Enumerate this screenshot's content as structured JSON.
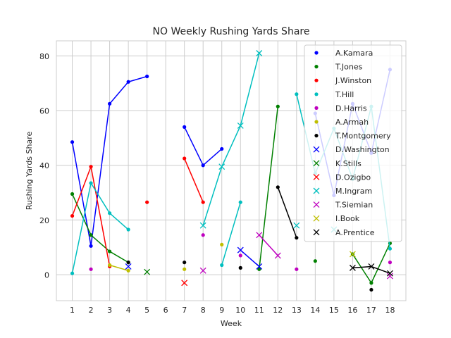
{
  "chart_data": {
    "type": "line",
    "title": "NO Weekly Rushing Yards Share",
    "xlabel": "Week",
    "ylabel": "Rushing Yards Share",
    "xlim": [
      0.15,
      18.85
    ],
    "ylim": [
      -9.5,
      85.5
    ],
    "xticks": [
      1,
      2,
      3,
      4,
      5,
      6,
      7,
      8,
      9,
      10,
      11,
      12,
      13,
      14,
      15,
      16,
      17,
      18
    ],
    "yticks": [
      0,
      20,
      40,
      60,
      80
    ],
    "grid": true,
    "legend_position": "top-right",
    "series": [
      {
        "name": "A.Kamara",
        "color": "#0000ff",
        "marker": "dot",
        "points": [
          [
            1,
            48.5
          ],
          [
            2,
            10.5
          ],
          [
            3,
            62.5
          ],
          [
            4,
            70.5
          ],
          [
            5,
            72.5
          ],
          [
            7,
            54
          ],
          [
            8,
            40
          ],
          [
            9,
            46
          ],
          [
            14,
            59
          ],
          [
            15,
            29
          ],
          [
            16,
            62.5
          ],
          [
            17,
            44.5
          ],
          [
            18,
            75
          ]
        ]
      },
      {
        "name": "T.Jones",
        "color": "#008000",
        "marker": "dot",
        "points": [
          [
            1,
            29.5
          ],
          [
            2,
            14.5
          ],
          [
            3,
            8.5
          ],
          [
            4,
            4.5
          ],
          [
            11,
            2
          ],
          [
            12,
            61.5
          ],
          [
            14,
            5
          ],
          [
            16,
            7.5
          ],
          [
            17,
            -3
          ],
          [
            18,
            11.5
          ]
        ]
      },
      {
        "name": "J.Winston",
        "color": "#ff0000",
        "marker": "dot",
        "points": [
          [
            1,
            21.5
          ],
          [
            2,
            39.5
          ],
          [
            3,
            3
          ],
          [
            5,
            26.5
          ],
          [
            7,
            42.5
          ],
          [
            8,
            26.5
          ]
        ]
      },
      {
        "name": "T.Hill",
        "color": "#00bfbf",
        "marker": "dot",
        "points": [
          [
            1,
            0.5
          ],
          [
            2,
            33.5
          ],
          [
            3,
            22.5
          ],
          [
            4,
            16.5
          ],
          [
            9,
            3.5
          ],
          [
            10,
            26.5
          ],
          [
            13,
            66
          ],
          [
            14,
            37
          ],
          [
            15,
            53.5
          ],
          [
            16,
            35
          ],
          [
            17,
            61.5
          ],
          [
            18,
            9.5
          ]
        ]
      },
      {
        "name": "D.Harris",
        "color": "#bf00bf",
        "marker": "dot",
        "points": [
          [
            2,
            2
          ],
          [
            8,
            14.5
          ],
          [
            10,
            7
          ],
          [
            13,
            2
          ],
          [
            18,
            4.5
          ]
        ]
      },
      {
        "name": "A.Armah",
        "color": "#bfbf00",
        "marker": "dot",
        "points": [
          [
            3,
            3.5
          ],
          [
            4,
            1.5
          ],
          [
            7,
            2
          ],
          [
            9,
            11
          ]
        ]
      },
      {
        "name": "T.Montgomery",
        "color": "#000000",
        "marker": "dot",
        "points": [
          [
            4,
            4.5
          ],
          [
            7,
            4.5
          ],
          [
            10,
            2.5
          ],
          [
            12,
            32
          ],
          [
            13,
            13.5
          ],
          [
            17,
            -5.5
          ]
        ]
      },
      {
        "name": "D.Washington",
        "color": "#0000ff",
        "marker": "x",
        "points": [
          [
            4,
            3
          ],
          [
            10,
            9
          ],
          [
            11,
            3
          ]
        ]
      },
      {
        "name": "K.Stills",
        "color": "#008000",
        "marker": "x",
        "points": [
          [
            5,
            1
          ]
        ]
      },
      {
        "name": "D.Ozigbo",
        "color": "#ff0000",
        "marker": "x",
        "points": [
          [
            7,
            -3
          ]
        ]
      },
      {
        "name": "M.Ingram",
        "color": "#00bfbf",
        "marker": "x",
        "points": [
          [
            8,
            18
          ],
          [
            9,
            39.5
          ],
          [
            10,
            54.5
          ],
          [
            11,
            81
          ],
          [
            13,
            18
          ],
          [
            15,
            16.5
          ]
        ]
      },
      {
        "name": "T.Siemian",
        "color": "#bf00bf",
        "marker": "x",
        "points": [
          [
            8,
            1.5
          ],
          [
            11,
            14.5
          ],
          [
            12,
            7
          ],
          [
            18,
            -0.5
          ]
        ]
      },
      {
        "name": "I.Book",
        "color": "#bfbf00",
        "marker": "x",
        "points": [
          [
            16,
            7.5
          ]
        ]
      },
      {
        "name": "A.Prentice",
        "color": "#000000",
        "marker": "x",
        "points": [
          [
            16,
            2.5
          ],
          [
            17,
            3
          ],
          [
            18,
            0.5
          ]
        ]
      }
    ]
  }
}
